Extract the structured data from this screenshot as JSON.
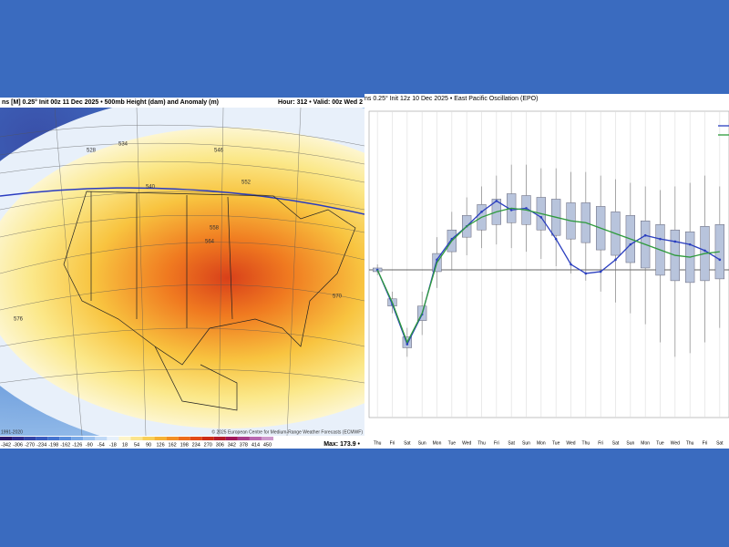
{
  "map": {
    "title": "ns [M] 0.25° Init 00z 11 Dec 2025 • 500mb Height (dam) and Anomaly (m)",
    "valid": "Hour: 312 • Valid: 00z Wed 2",
    "contours": [
      "528",
      "534",
      "540",
      "546",
      "552",
      "558",
      "564",
      "570",
      "576"
    ],
    "colorbar": [
      -342,
      -306,
      -270,
      -234,
      -198,
      -162,
      -126,
      -90,
      -54,
      -18,
      18,
      54,
      90,
      126,
      162,
      198,
      234,
      270,
      306,
      342,
      378,
      414,
      450
    ],
    "max": "Max: 173.9 •"
  },
  "chart_data": {
    "type": "box",
    "title": "ns 0.25° Init 12z 10 Dec 2025 • East Pacific Oscillation (EPO)",
    "categories": [
      "Thu",
      "Fri",
      "Sat",
      "Sun",
      "Mon",
      "Tue",
      "Wed",
      "Thu",
      "Fri",
      "Sat",
      "Sun",
      "Mon",
      "Tue",
      "Wed",
      "Thu",
      "Fri",
      "Sat",
      "Sun",
      "Mon",
      "Tue",
      "Wed",
      "Thu",
      "Fri",
      "Sat"
    ],
    "ylim": [
      -4,
      4.3
    ],
    "reference_line": 0,
    "boxes": {
      "color": "#b8c4dc",
      "low": [
        -0.15,
        -1.2,
        -2.4,
        -1.8,
        -0.5,
        0,
        0.4,
        0.6,
        0.7,
        0.6,
        0.5,
        0.3,
        0.1,
        -0.1,
        -0.3,
        -0.6,
        -0.9,
        -1.2,
        -1.5,
        -2.0,
        -2.4,
        -2.3,
        -2.0,
        -1.6
      ],
      "q1": [
        -0.05,
        -1.0,
        -2.15,
        -1.4,
        -0.05,
        0.5,
        0.9,
        1.1,
        1.25,
        1.3,
        1.25,
        1.1,
        0.95,
        0.85,
        0.75,
        0.55,
        0.4,
        0.2,
        0.05,
        -0.15,
        -0.3,
        -0.35,
        -0.3,
        -0.25
      ],
      "q3": [
        0.05,
        -0.8,
        -1.85,
        -1.0,
        0.45,
        1.1,
        1.5,
        1.8,
        1.95,
        2.1,
        2.05,
        2.0,
        1.95,
        1.85,
        1.85,
        1.75,
        1.6,
        1.5,
        1.35,
        1.25,
        1.1,
        1.05,
        1.2,
        1.25
      ],
      "high": [
        0.15,
        -0.6,
        -1.6,
        -0.6,
        0.9,
        1.6,
        2.0,
        2.3,
        2.6,
        2.9,
        2.9,
        2.8,
        2.8,
        2.7,
        2.7,
        2.6,
        2.5,
        2.4,
        2.3,
        2.2,
        2.3,
        2.4,
        2.6,
        2.3
      ]
    },
    "series": [
      {
        "color": "#2b3fbf",
        "values": [
          0,
          -0.95,
          -2.05,
          -1.23,
          0.28,
          0.85,
          1.2,
          1.6,
          1.9,
          1.65,
          1.7,
          1.45,
          0.85,
          0.15,
          -0.1,
          -0.05,
          0.28,
          0.7,
          0.95,
          0.85,
          0.78,
          0.7,
          0.53,
          0.28
        ]
      },
      {
        "color": "#2e9a3c",
        "values": [
          0,
          -0.9,
          -2.0,
          -1.2,
          0.2,
          0.8,
          1.2,
          1.45,
          1.6,
          1.7,
          1.65,
          1.55,
          1.45,
          1.35,
          1.3,
          1.15,
          1.0,
          0.85,
          0.7,
          0.55,
          0.4,
          0.35,
          0.45,
          0.5
        ]
      }
    ]
  }
}
